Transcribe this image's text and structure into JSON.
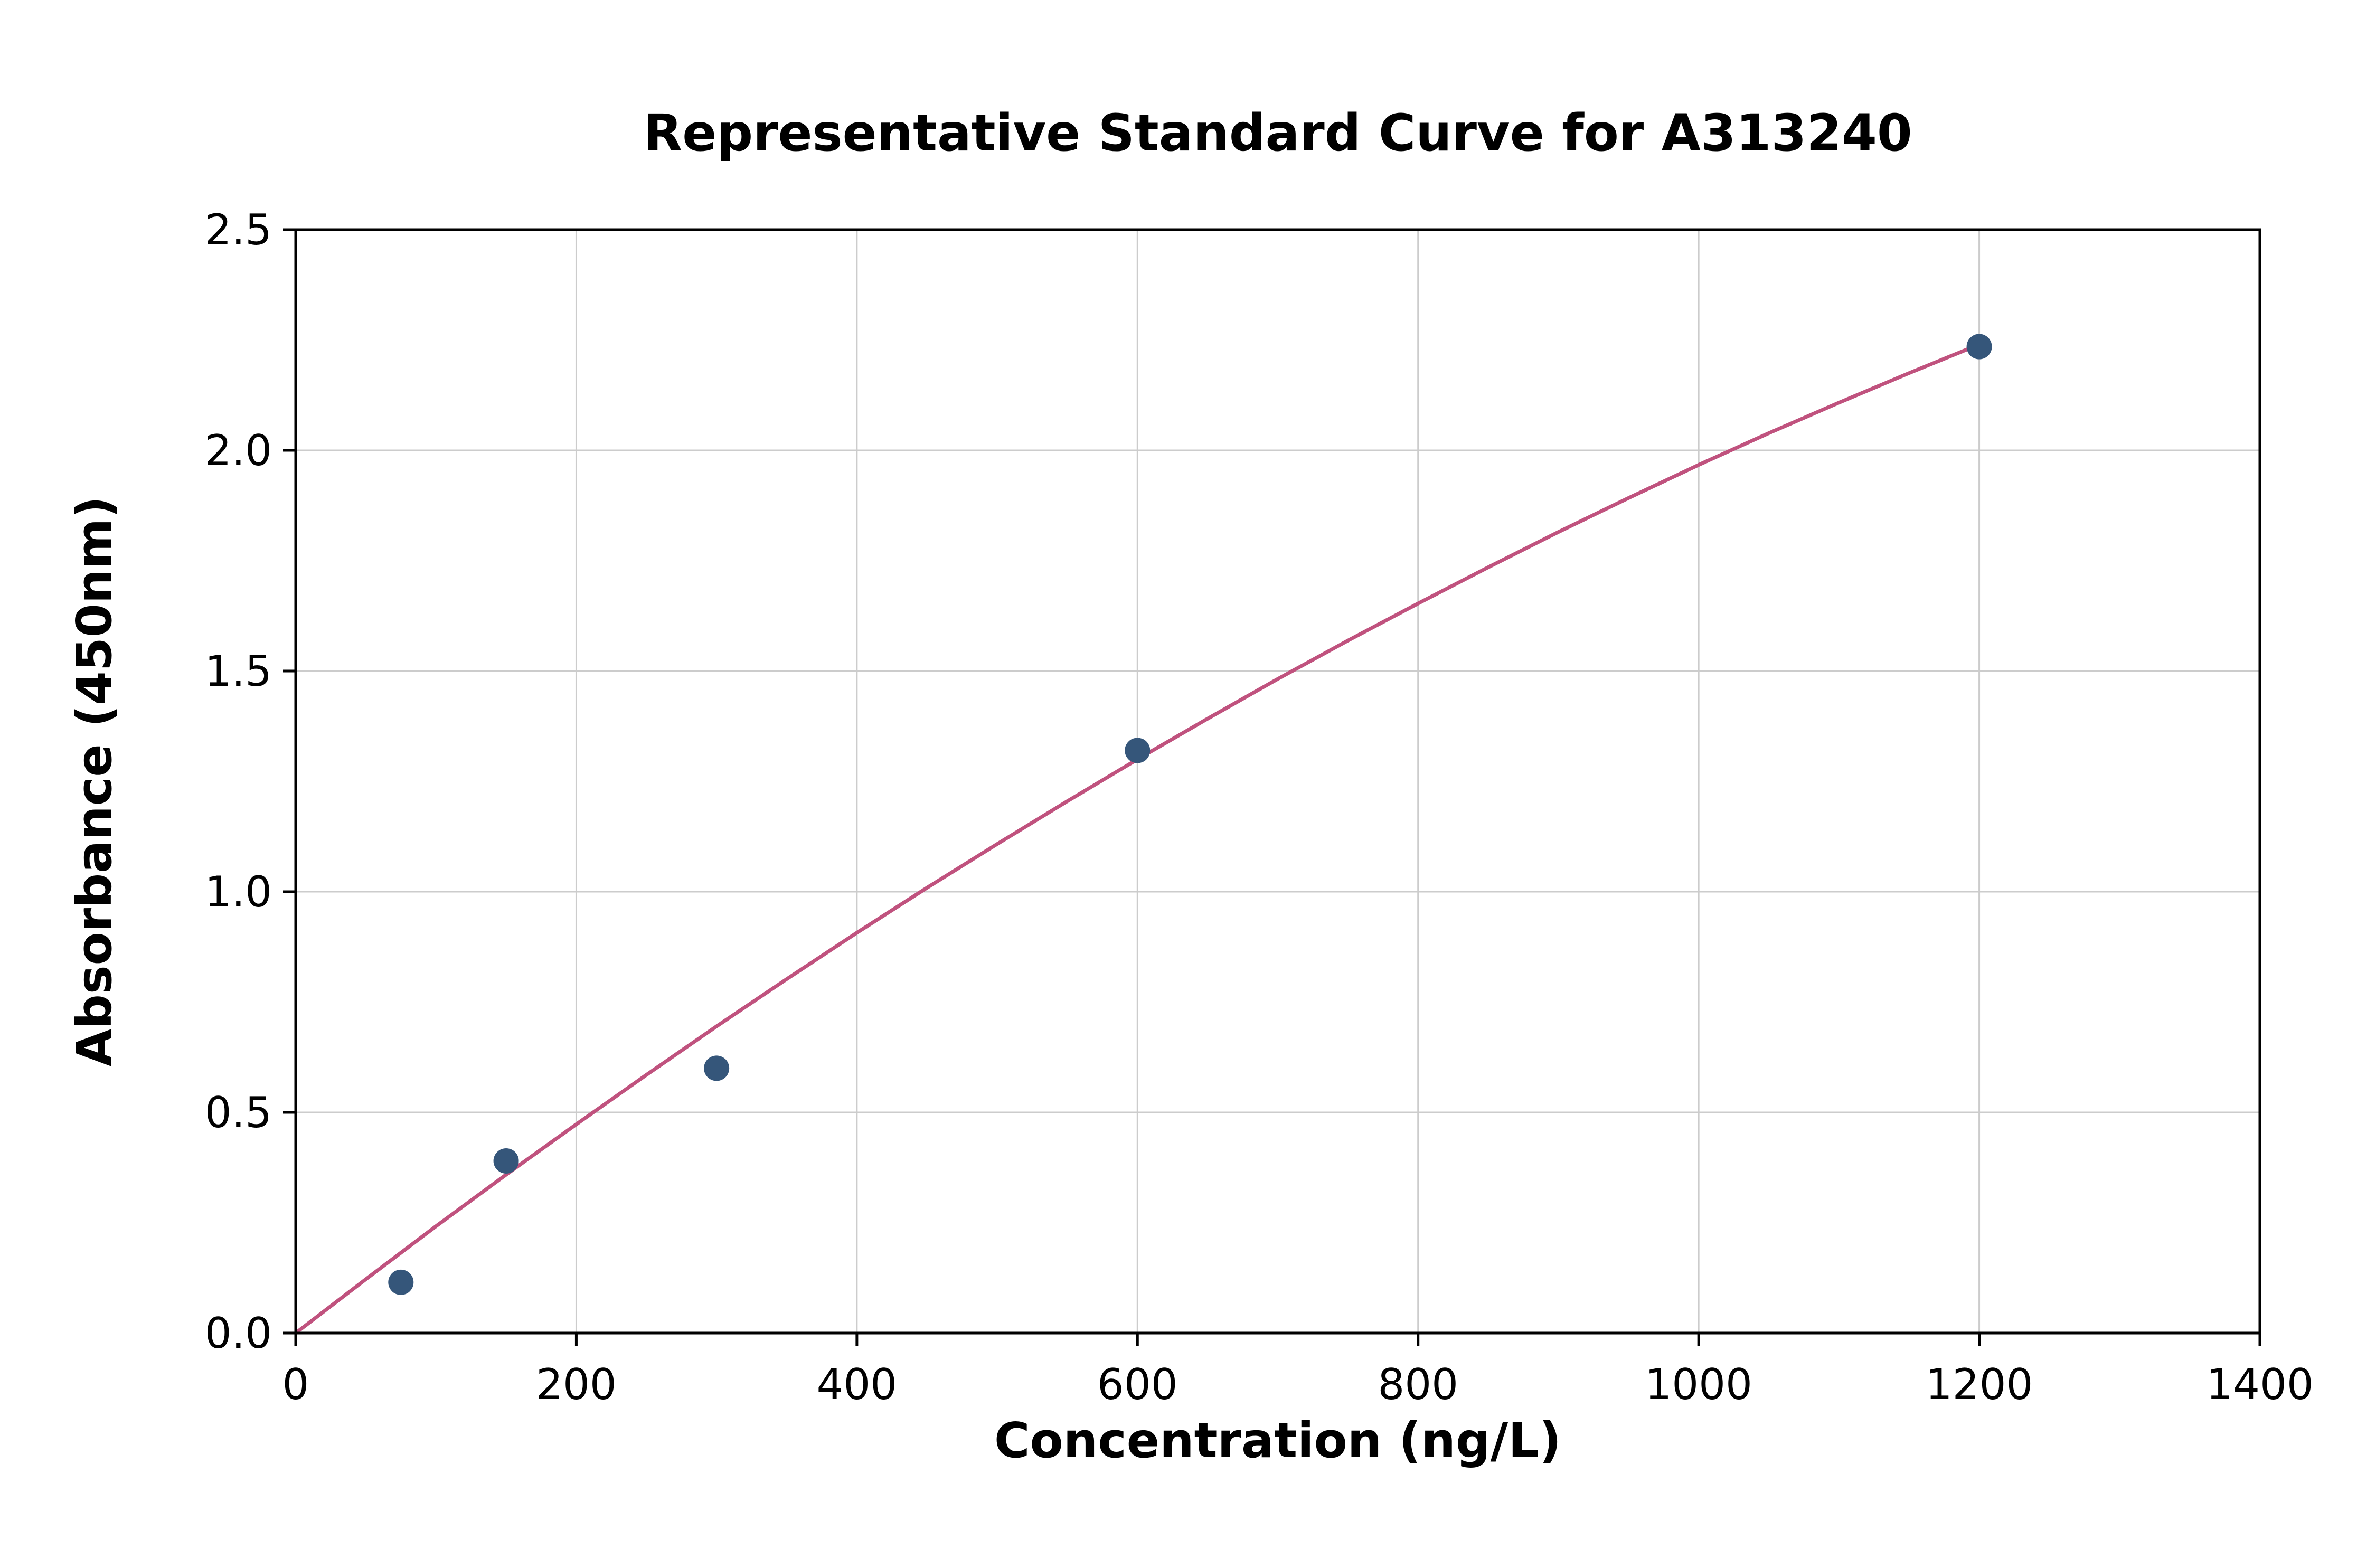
{
  "chart_data": {
    "type": "scatter",
    "title": "Representative Standard Curve for A313240",
    "xlabel": "Concentration (ng/L)",
    "ylabel": "Absorbance (450nm)",
    "xlim": [
      0,
      1400
    ],
    "ylim": [
      0,
      2.5
    ],
    "xticks": [
      "0",
      "200",
      "400",
      "600",
      "800",
      "1000",
      "1200",
      "1400"
    ],
    "yticks": [
      "0.0",
      "0.5",
      "1.0",
      "1.5",
      "2.0",
      "2.5"
    ],
    "grid": true,
    "legend_position": "none",
    "points": [
      {
        "x": 75,
        "y": 0.115
      },
      {
        "x": 150,
        "y": 0.39
      },
      {
        "x": 300,
        "y": 0.6
      },
      {
        "x": 600,
        "y": 1.32
      },
      {
        "x": 1200,
        "y": 2.235
      }
    ],
    "fit_curve": [
      {
        "x": 0,
        "y": 0.0
      },
      {
        "x": 50,
        "y": 0.122
      },
      {
        "x": 100,
        "y": 0.242
      },
      {
        "x": 150,
        "y": 0.359
      },
      {
        "x": 200,
        "y": 0.473
      },
      {
        "x": 250,
        "y": 0.585
      },
      {
        "x": 300,
        "y": 0.695
      },
      {
        "x": 350,
        "y": 0.802
      },
      {
        "x": 400,
        "y": 0.907
      },
      {
        "x": 450,
        "y": 1.009
      },
      {
        "x": 500,
        "y": 1.108
      },
      {
        "x": 550,
        "y": 1.205
      },
      {
        "x": 600,
        "y": 1.3
      },
      {
        "x": 650,
        "y": 1.392
      },
      {
        "x": 700,
        "y": 1.482
      },
      {
        "x": 750,
        "y": 1.569
      },
      {
        "x": 800,
        "y": 1.653
      },
      {
        "x": 850,
        "y": 1.735
      },
      {
        "x": 900,
        "y": 1.815
      },
      {
        "x": 950,
        "y": 1.892
      },
      {
        "x": 1000,
        "y": 1.967
      },
      {
        "x": 1050,
        "y": 2.039
      },
      {
        "x": 1100,
        "y": 2.108
      },
      {
        "x": 1150,
        "y": 2.175
      },
      {
        "x": 1200,
        "y": 2.24
      }
    ],
    "colors": {
      "point": "#35567a",
      "curve": "#c0527e",
      "grid": "#cccccc",
      "axis": "#000000",
      "background": "#ffffff"
    }
  }
}
